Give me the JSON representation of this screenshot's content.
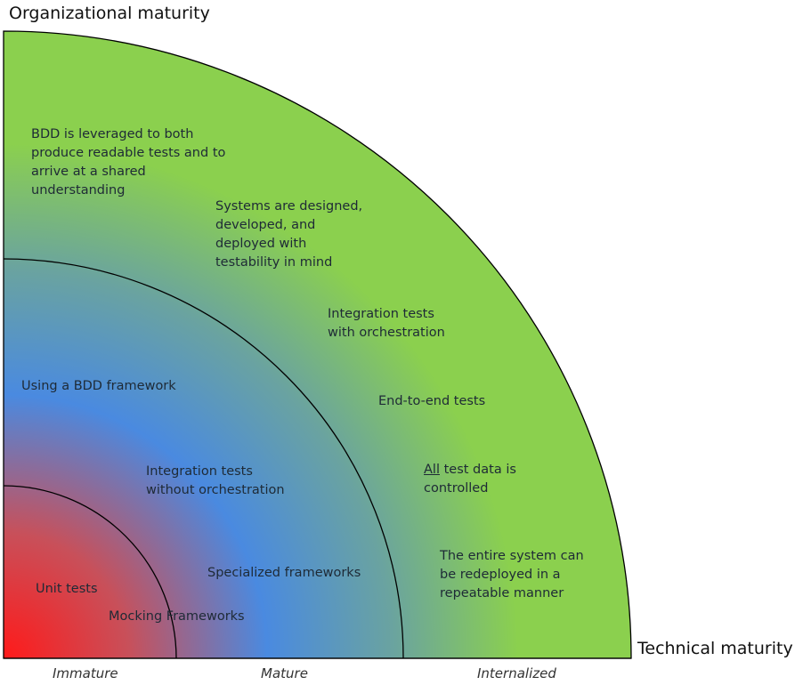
{
  "axes": {
    "y_title": "Organizational maturity",
    "x_title": "Technical maturity"
  },
  "stages": [
    "Immature",
    "Mature",
    "Internalized"
  ],
  "colors": {
    "core": "#ff1a1a",
    "mid_red": "#c8505a",
    "blue": "#4a8ae0",
    "teal": "#6aa3a0",
    "green": "#8bd04e",
    "outline": "#000000"
  },
  "notes": {
    "bdd_shared": "BDD is leveraged to both\nproduce readable tests and to\narrive at a shared\nunderstanding",
    "testability": "Systems are designed,\ndeveloped, and\ndeployed with\ntestability in mind",
    "integration_orch": "Integration tests\nwith orchestration",
    "bdd_framework": "Using a BDD framework",
    "e2e": "End-to-end tests",
    "test_data_all": "All",
    "test_data_rest": " test data is\ncontrolled",
    "integration_no_orch": "Integration tests\nwithout orchestration",
    "specialized": "Specialized frameworks",
    "redeploy": "The entire system can\nbe redeployed in a\nrepeatable manner",
    "unit": "Unit tests",
    "mocking": "Mocking Frameworks"
  }
}
